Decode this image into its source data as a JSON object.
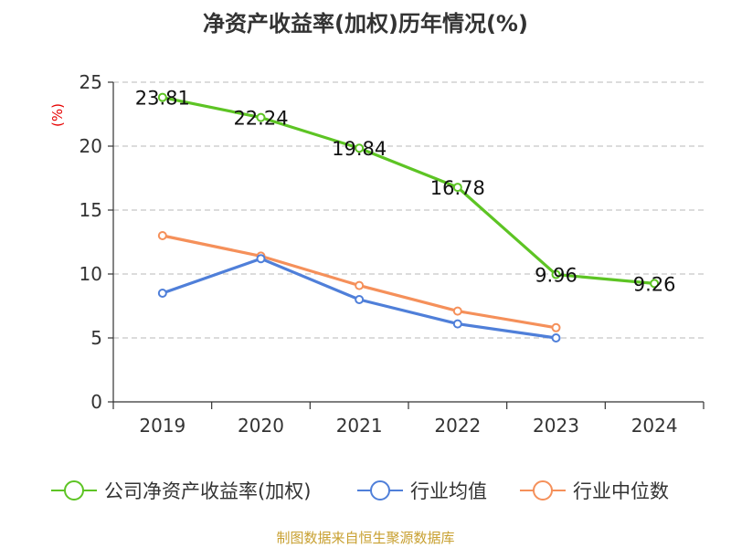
{
  "chart_data": {
    "type": "line",
    "title": "净资产收益率(加权)历年情况(%)",
    "ylabel": "(%)",
    "xlabel": "",
    "categories": [
      "2019",
      "2020",
      "2021",
      "2022",
      "2023",
      "2024"
    ],
    "ylim": [
      0,
      25
    ],
    "yticks": [
      0,
      5,
      10,
      15,
      20,
      25
    ],
    "grid": true,
    "legend_position": "bottom",
    "series": [
      {
        "name": "公司净资产收益率(加权)",
        "values": [
          23.81,
          22.24,
          19.84,
          16.78,
          9.96,
          9.26
        ],
        "color": "#5dc424",
        "labels": [
          "23.81",
          "22.24",
          "19.84",
          "16.78",
          "9.96",
          "9.26"
        ]
      },
      {
        "name": "行业均值",
        "values": [
          8.5,
          11.2,
          8.0,
          6.1,
          5.0,
          null
        ],
        "color": "#4f7fd9"
      },
      {
        "name": "行业中位数",
        "values": [
          13.0,
          11.4,
          9.1,
          7.1,
          5.8,
          null
        ],
        "color": "#f5905a"
      }
    ],
    "source": "制图数据来自恒生聚源数据库"
  }
}
